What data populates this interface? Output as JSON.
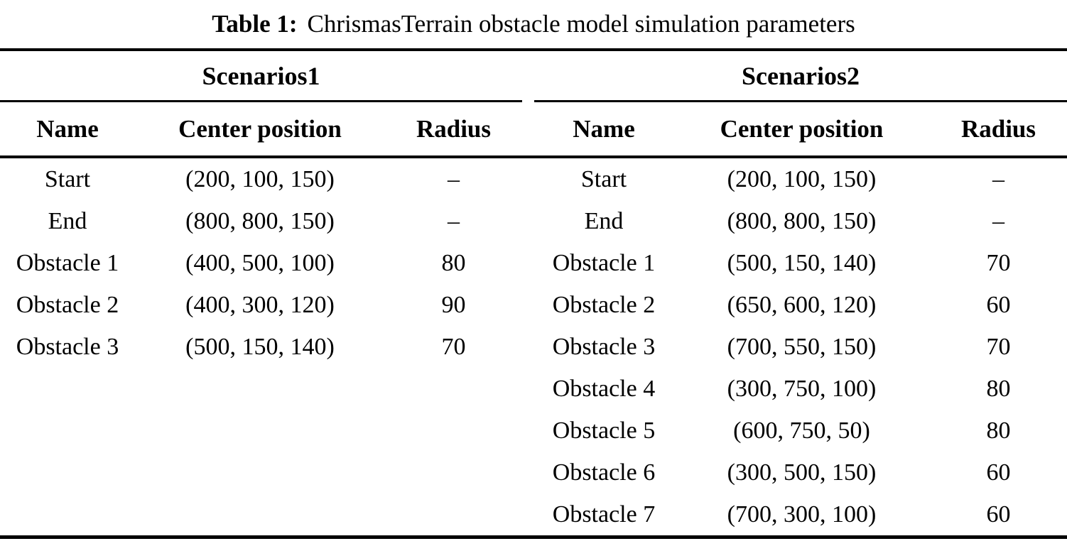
{
  "title": {
    "label": "Table 1:",
    "text": "ChrismasTerrain obstacle model simulation parameters"
  },
  "colors": {
    "text": "#000000",
    "background": "#ffffff",
    "rule": "#000000"
  },
  "table": {
    "scenarios": [
      {
        "name": "Scenarios1",
        "columns": [
          "Name",
          "Center position",
          "Radius"
        ],
        "rows": [
          {
            "name": "Start",
            "center": "(200, 100, 150)",
            "radius": "–"
          },
          {
            "name": "End",
            "center": "(800, 800, 150)",
            "radius": "–"
          },
          {
            "name": "Obstacle 1",
            "center": "(400, 500, 100)",
            "radius": "80"
          },
          {
            "name": "Obstacle 2",
            "center": "(400, 300, 120)",
            "radius": "90"
          },
          {
            "name": "Obstacle 3",
            "center": "(500, 150, 140)",
            "radius": "70"
          }
        ]
      },
      {
        "name": "Scenarios2",
        "columns": [
          "Name",
          "Center position",
          "Radius"
        ],
        "rows": [
          {
            "name": "Start",
            "center": "(200, 100, 150)",
            "radius": "–"
          },
          {
            "name": "End",
            "center": "(800, 800, 150)",
            "radius": "–"
          },
          {
            "name": "Obstacle 1",
            "center": "(500, 150, 140)",
            "radius": "70"
          },
          {
            "name": "Obstacle 2",
            "center": "(650, 600, 120)",
            "radius": "60"
          },
          {
            "name": "Obstacle 3",
            "center": "(700, 550, 150)",
            "radius": "70"
          },
          {
            "name": "Obstacle 4",
            "center": "(300, 750, 100)",
            "radius": "80"
          },
          {
            "name": "Obstacle 5",
            "center": "(600, 750, 50)",
            "radius": "80"
          },
          {
            "name": "Obstacle 6",
            "center": "(300, 500, 150)",
            "radius": "60"
          },
          {
            "name": "Obstacle 7",
            "center": "(700, 300, 100)",
            "radius": "60"
          }
        ]
      }
    ]
  }
}
